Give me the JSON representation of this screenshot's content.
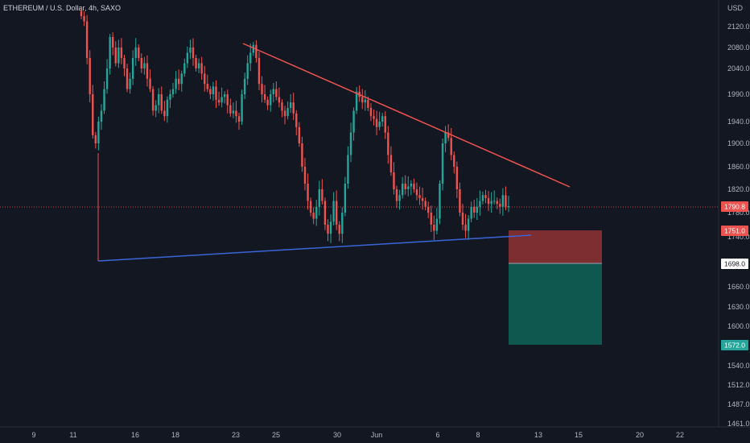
{
  "header": {
    "symbol": "ETHEREUM / U.S. Dollar, 4h, SAXO",
    "currency": "USD"
  },
  "colors": {
    "background": "#131722",
    "up": "#26a69a",
    "down": "#ef5350",
    "resistance": "#ef5350",
    "support": "#3a66d8",
    "stop_zone": "#7d2e31",
    "target_zone": "#0f5850",
    "axis_text": "#b2b5be"
  },
  "chart_data": {
    "type": "candlestick",
    "timeframe": "4h",
    "x_ticks": [
      "9",
      "11",
      "16",
      "18",
      "23",
      "25",
      "30",
      "Jun",
      "6",
      "8",
      "13",
      "15",
      "20",
      "22"
    ],
    "y_ticks": [
      2120.0,
      2080.0,
      2040.0,
      1990.0,
      1940.0,
      1900.0,
      1860.0,
      1820.0,
      1780.0,
      1740.0,
      1660.0,
      1630.0,
      1600.0,
      1540.0,
      1512.0,
      1487.0,
      1461.0
    ],
    "y_range": [
      1455,
      2140
    ],
    "price_labels": [
      {
        "value": "1790.8",
        "kind": "last-price"
      },
      {
        "value": "1751.0",
        "kind": "stop"
      },
      {
        "value": "1698.0",
        "kind": "entry"
      },
      {
        "value": "1572.0",
        "kind": "target"
      }
    ],
    "trendlines": [
      {
        "name": "descending resistance",
        "from": [
          "May 23",
          2090
        ],
        "to": [
          "Jun 14",
          1825
        ]
      },
      {
        "name": "ascending support",
        "from": [
          "May 12",
          1700
        ],
        "to": [
          "Jun 10",
          1745
        ]
      }
    ],
    "position": {
      "direction": "short",
      "entry": 1698.0,
      "stop": 1751.0,
      "target": 1572.0
    },
    "candles_close": [
      2140,
      2130,
      2060,
      1990,
      1915,
      1900,
      1940,
      1960,
      2000,
      2040,
      2100,
      2080,
      2050,
      2080,
      2060,
      2040,
      2000,
      2020,
      2060,
      2080,
      2060,
      2040,
      2050,
      2020,
      2000,
      1960,
      1970,
      1990,
      1960,
      1950,
      1980,
      1990,
      2000,
      2020,
      2010,
      2030,
      2050,
      2070,
      2080,
      2060,
      2040,
      2050,
      2030,
      2010,
      2000,
      1990,
      2005,
      1980,
      1975,
      1985,
      1990,
      1970,
      1955,
      1960,
      1950,
      1940,
      1990,
      2020,
      2050,
      2070,
      2085,
      2060,
      2010,
      1990,
      1980,
      1970,
      1990,
      2000,
      1985,
      1975,
      1960,
      1950,
      1965,
      1975,
      1955,
      1930,
      1900,
      1860,
      1830,
      1800,
      1780,
      1770,
      1790,
      1820,
      1800,
      1760,
      1745,
      1765,
      1800,
      1760,
      1745,
      1780,
      1830,
      1880,
      1920,
      1960,
      1995,
      1985,
      1975,
      1980,
      1965,
      1950,
      1945,
      1930,
      1940,
      1950,
      1920,
      1880,
      1850,
      1820,
      1800,
      1810,
      1830,
      1820,
      1825,
      1830,
      1820,
      1810,
      1805,
      1800,
      1790,
      1780,
      1760,
      1750,
      1770,
      1830,
      1900,
      1920,
      1910,
      1880,
      1860,
      1820,
      1780,
      1760,
      1750,
      1770,
      1790,
      1780,
      1790,
      1800,
      1810,
      1805,
      1795,
      1800,
      1800,
      1795,
      1790,
      1810,
      1790,
      1791
    ]
  }
}
